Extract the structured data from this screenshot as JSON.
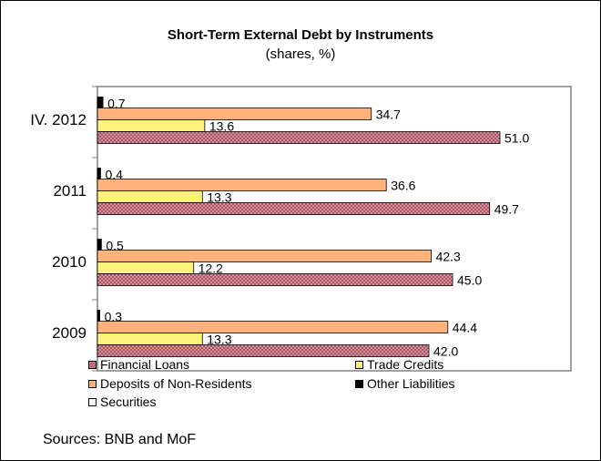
{
  "chart_data": {
    "type": "bar",
    "orientation": "horizontal",
    "title": "Short-Term External Debt by Instruments",
    "subtitle": "(shares, %)",
    "categories": [
      "IV. 2012",
      "2011",
      "2010",
      "2009"
    ],
    "series": [
      {
        "name": "Other Liabilities",
        "values": [
          0.7,
          0.4,
          0.5,
          0.3
        ],
        "color": "#000000",
        "pattern": "solid"
      },
      {
        "name": "Deposits of Non-Residents",
        "values": [
          34.7,
          36.6,
          42.3,
          44.4
        ],
        "color": "#ffb27c",
        "pattern": "solid"
      },
      {
        "name": "Trade Credits",
        "values": [
          13.6,
          13.3,
          12.2,
          13.3
        ],
        "color": "#fff27a",
        "pattern": "solid"
      },
      {
        "name": "Securities",
        "values": [
          0,
          0,
          0,
          0
        ],
        "color": "#ffffff",
        "pattern": "solid"
      },
      {
        "name": "Financial Loans",
        "values": [
          51.0,
          49.7,
          45.0,
          42.0
        ],
        "color": "#c97b87",
        "pattern": "hatched"
      }
    ],
    "data_labels": [
      [
        "0.7",
        "34.7",
        "13.6",
        "51.0"
      ],
      [
        "0.4",
        "36.6",
        "13.3",
        "49.7"
      ],
      [
        "0.5",
        "42.3",
        "12.2",
        "45.0"
      ],
      [
        "0.3",
        "44.4",
        "13.3",
        "42.0"
      ]
    ],
    "xlim": [
      0,
      60
    ],
    "grid": false,
    "legend_position": "bottom",
    "legend": [
      "Financial Loans",
      "Trade Credits",
      "Deposits of Non-Residents",
      "Other Liabilities",
      "Securities"
    ]
  },
  "source_note": "Sources: BNB and MoF"
}
